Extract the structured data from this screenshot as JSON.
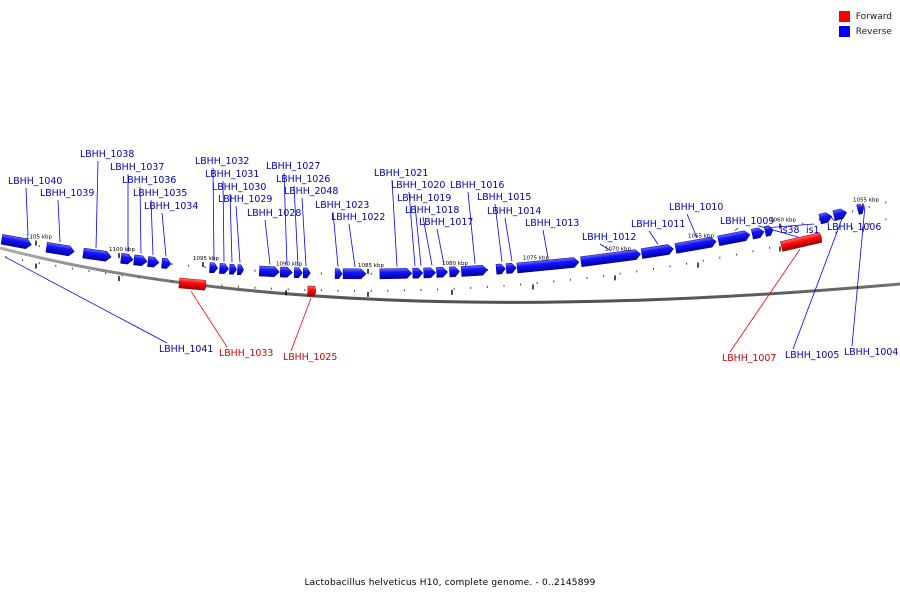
{
  "legend": {
    "items": [
      {
        "label": "Forward",
        "color": "#ff0000"
      },
      {
        "label": "Reverse",
        "color": "#0000ff"
      }
    ]
  },
  "caption": "Lactobacillus helveticus H10, complete genome. - 0..2145899",
  "colors": {
    "forward": "#ff0000",
    "reverse": "#0000ff",
    "backbone": "#808080"
  },
  "scale": {
    "ticks": [
      {
        "label": "1105 kbp",
        "kbp": 1105
      },
      {
        "label": "1100 kbp",
        "kbp": 1100
      },
      {
        "label": "1095 kbp",
        "kbp": 1095
      },
      {
        "label": "1090 kbp",
        "kbp": 1090
      },
      {
        "label": "1085 kbp",
        "kbp": 1085
      },
      {
        "label": "1080 kbp",
        "kbp": 1080
      },
      {
        "label": "1075 kbp",
        "kbp": 1075
      },
      {
        "label": "1070 kbp",
        "kbp": 1070
      },
      {
        "label": "1065 kbp",
        "kbp": 1065
      },
      {
        "label": "1060 kbp",
        "kbp": 1060
      },
      {
        "label": "1055 kbp",
        "kbp": 1055
      }
    ]
  },
  "genes": [
    {
      "name": "LBHH_1040",
      "strand": "reverse"
    },
    {
      "name": "LBHH_1039",
      "strand": "reverse"
    },
    {
      "name": "LBHH_1038",
      "strand": "reverse"
    },
    {
      "name": "LBHH_1037",
      "strand": "reverse"
    },
    {
      "name": "LBHH_1036",
      "strand": "reverse"
    },
    {
      "name": "LBHH_1035",
      "strand": "reverse"
    },
    {
      "name": "LBHH_1034",
      "strand": "reverse"
    },
    {
      "name": "LBHH_1032",
      "strand": "reverse"
    },
    {
      "name": "LBHH_1031",
      "strand": "reverse"
    },
    {
      "name": "LBHH_1030",
      "strand": "reverse"
    },
    {
      "name": "LBHH_1029",
      "strand": "reverse"
    },
    {
      "name": "LBHH_1028",
      "strand": "reverse"
    },
    {
      "name": "LBHH_1027",
      "strand": "reverse"
    },
    {
      "name": "LBHH_1026",
      "strand": "reverse"
    },
    {
      "name": "LBHH_2048",
      "strand": "reverse"
    },
    {
      "name": "LBHH_1023",
      "strand": "reverse"
    },
    {
      "name": "LBHH_1022",
      "strand": "reverse"
    },
    {
      "name": "LBHH_1021",
      "strand": "reverse"
    },
    {
      "name": "LBHH_1020",
      "strand": "reverse"
    },
    {
      "name": "LBHH_1019",
      "strand": "reverse"
    },
    {
      "name": "LBHH_1018",
      "strand": "reverse"
    },
    {
      "name": "LBHH_1017",
      "strand": "reverse"
    },
    {
      "name": "LBHH_1016",
      "strand": "reverse"
    },
    {
      "name": "LBHH_1015",
      "strand": "reverse"
    },
    {
      "name": "LBHH_1014",
      "strand": "reverse"
    },
    {
      "name": "LBHH_1013",
      "strand": "reverse"
    },
    {
      "name": "LBHH_1012",
      "strand": "reverse"
    },
    {
      "name": "LBHH_1011",
      "strand": "reverse"
    },
    {
      "name": "LBHH_1010",
      "strand": "reverse"
    },
    {
      "name": "LBHH_1009",
      "strand": "reverse"
    },
    {
      "name": "is38",
      "strand": "reverse"
    },
    {
      "name": "is1",
      "strand": "reverse"
    },
    {
      "name": "LBHH_1006",
      "strand": "reverse"
    },
    {
      "name": "LBHH_1041",
      "strand": "reverse"
    },
    {
      "name": "LBHH_1005",
      "strand": "reverse"
    },
    {
      "name": "LBHH_1004",
      "strand": "reverse"
    },
    {
      "name": "LBHH_1033",
      "strand": "forward"
    },
    {
      "name": "LBHH_1025",
      "strand": "forward"
    },
    {
      "name": "LBHH_1007",
      "strand": "forward"
    }
  ]
}
